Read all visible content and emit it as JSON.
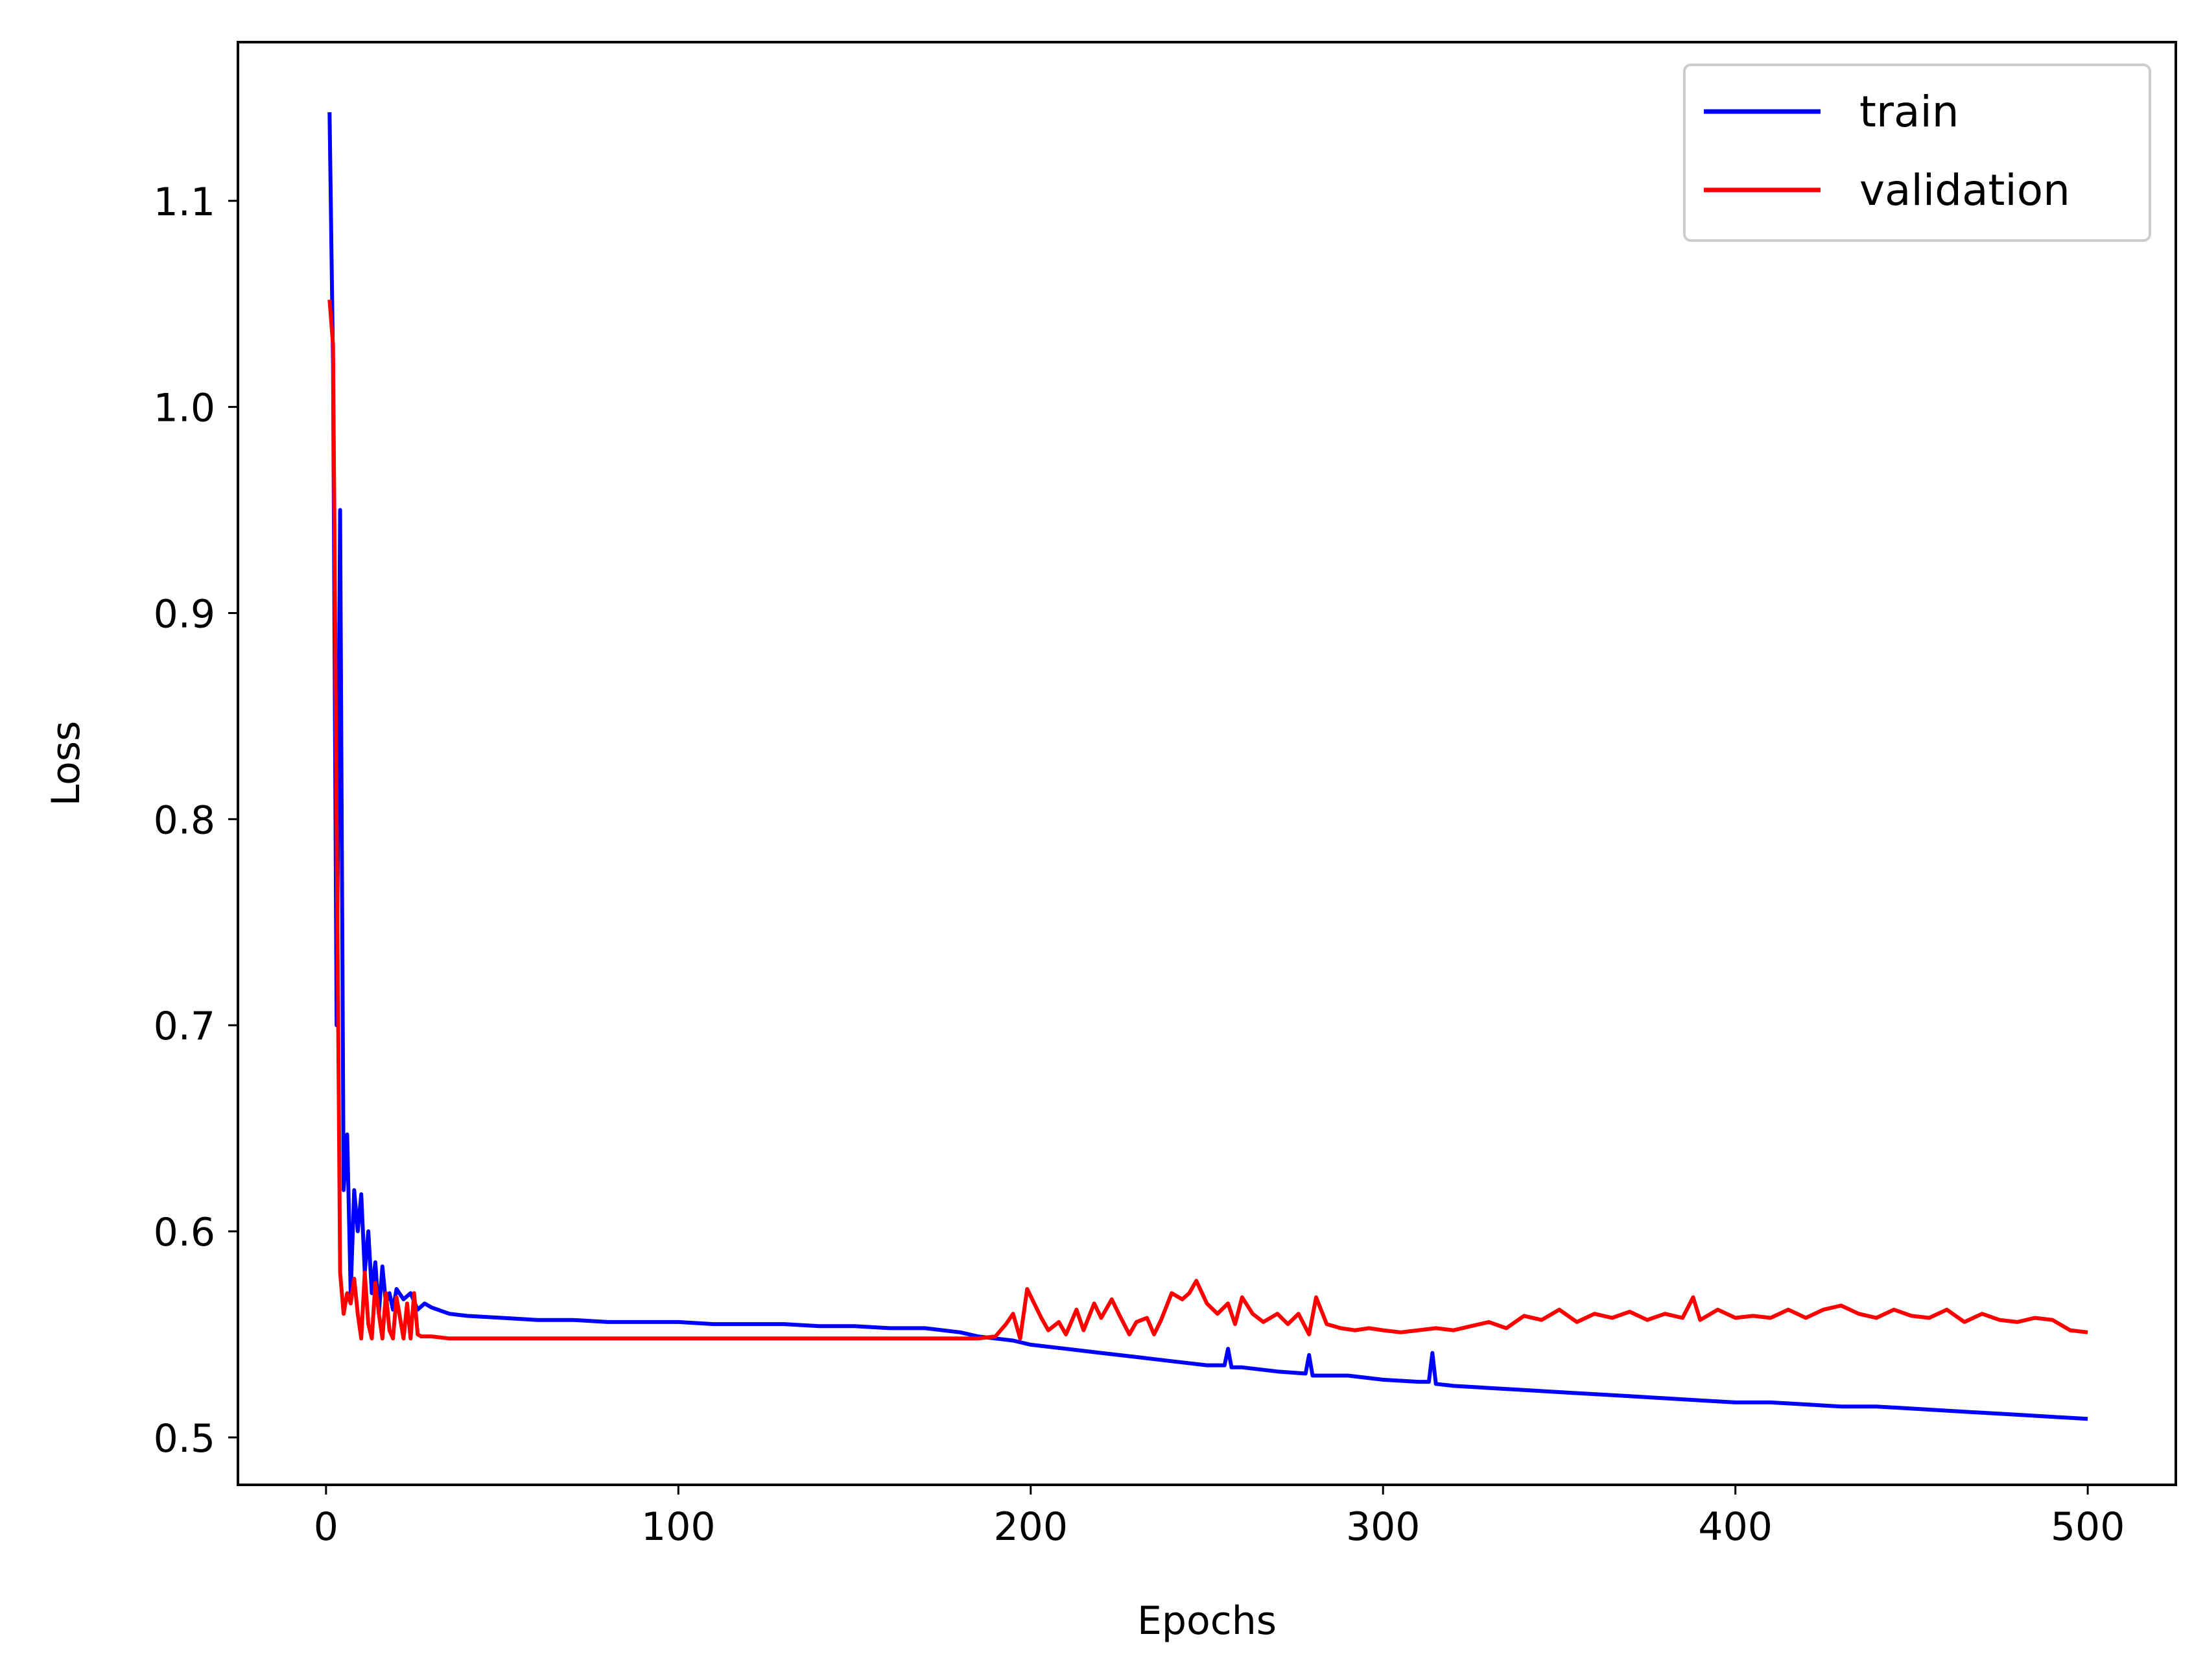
{
  "chart_data": {
    "type": "line",
    "title": "",
    "xlabel": "Epochs",
    "ylabel": "Loss",
    "xlim": [
      -25,
      525
    ],
    "ylim": [
      0.477,
      1.177
    ],
    "xticks": [
      0,
      100,
      200,
      300,
      400,
      500
    ],
    "xtick_labels": [
      "0",
      "100",
      "200",
      "300",
      "400",
      "500"
    ],
    "yticks": [
      0.5,
      0.6,
      0.7,
      0.8,
      0.9,
      1.0,
      1.1
    ],
    "ytick_labels": [
      "0.5",
      "0.6",
      "0.7",
      "0.8",
      "0.9",
      "1.0",
      "1.1"
    ],
    "grid": false,
    "legend_position": "top-right",
    "series": [
      {
        "name": "train",
        "color": "#0000ff",
        "x": [
          1,
          2,
          3,
          4,
          5,
          6,
          7,
          8,
          9,
          10,
          11,
          12,
          13,
          14,
          15,
          16,
          17,
          18,
          19,
          20,
          22,
          24,
          26,
          28,
          30,
          35,
          40,
          50,
          60,
          70,
          80,
          90,
          100,
          110,
          120,
          130,
          140,
          150,
          160,
          170,
          180,
          185,
          190,
          195,
          200,
          210,
          220,
          230,
          240,
          250,
          255,
          256,
          257,
          260,
          270,
          278,
          279,
          280,
          290,
          300,
          310,
          313,
          314,
          315,
          320,
          330,
          340,
          350,
          360,
          370,
          380,
          390,
          400,
          410,
          420,
          430,
          440,
          450,
          460,
          470,
          480,
          490,
          500
        ],
        "y": [
          1.143,
          1.02,
          0.7,
          0.95,
          0.62,
          0.647,
          0.57,
          0.62,
          0.6,
          0.618,
          0.58,
          0.6,
          0.57,
          0.585,
          0.56,
          0.583,
          0.565,
          0.57,
          0.562,
          0.572,
          0.567,
          0.57,
          0.562,
          0.565,
          0.563,
          0.56,
          0.559,
          0.558,
          0.557,
          0.557,
          0.556,
          0.556,
          0.556,
          0.555,
          0.555,
          0.555,
          0.554,
          0.554,
          0.553,
          0.553,
          0.551,
          0.549,
          0.548,
          0.547,
          0.545,
          0.543,
          0.541,
          0.539,
          0.537,
          0.535,
          0.535,
          0.543,
          0.534,
          0.534,
          0.532,
          0.531,
          0.54,
          0.53,
          0.53,
          0.528,
          0.527,
          0.527,
          0.541,
          0.526,
          0.525,
          0.524,
          0.523,
          0.522,
          0.521,
          0.52,
          0.519,
          0.518,
          0.517,
          0.517,
          0.516,
          0.515,
          0.515,
          0.514,
          0.513,
          0.512,
          0.511,
          0.51,
          0.509
        ]
      },
      {
        "name": "validation",
        "color": "#ff0000",
        "x": [
          1,
          2,
          3,
          4,
          5,
          6,
          7,
          8,
          9,
          10,
          11,
          12,
          13,
          14,
          15,
          16,
          17,
          18,
          19,
          20,
          21,
          22,
          23,
          24,
          25,
          26,
          27,
          28,
          30,
          35,
          40,
          50,
          60,
          70,
          80,
          90,
          100,
          110,
          120,
          130,
          140,
          150,
          160,
          170,
          180,
          185,
          190,
          193,
          195,
          197,
          199,
          201,
          203,
          205,
          208,
          210,
          213,
          215,
          218,
          220,
          223,
          225,
          228,
          230,
          233,
          235,
          237,
          240,
          243,
          245,
          247,
          250,
          253,
          256,
          258,
          260,
          263,
          266,
          270,
          273,
          276,
          279,
          281,
          284,
          288,
          292,
          296,
          300,
          305,
          310,
          315,
          320,
          325,
          330,
          335,
          340,
          345,
          350,
          355,
          360,
          365,
          370,
          375,
          380,
          385,
          388,
          390,
          395,
          400,
          405,
          410,
          415,
          420,
          425,
          430,
          435,
          440,
          445,
          450,
          455,
          460,
          465,
          470,
          475,
          480,
          485,
          490,
          495,
          500
        ],
        "y": [
          1.052,
          1.03,
          0.8,
          0.58,
          0.56,
          0.57,
          0.565,
          0.577,
          0.56,
          0.548,
          0.58,
          0.555,
          0.548,
          0.575,
          0.56,
          0.548,
          0.57,
          0.552,
          0.548,
          0.568,
          0.558,
          0.548,
          0.565,
          0.548,
          0.57,
          0.55,
          0.549,
          0.549,
          0.549,
          0.548,
          0.548,
          0.548,
          0.548,
          0.548,
          0.548,
          0.548,
          0.548,
          0.548,
          0.548,
          0.548,
          0.548,
          0.548,
          0.548,
          0.548,
          0.548,
          0.548,
          0.549,
          0.555,
          0.56,
          0.548,
          0.572,
          0.565,
          0.558,
          0.552,
          0.556,
          0.55,
          0.562,
          0.552,
          0.565,
          0.558,
          0.567,
          0.56,
          0.55,
          0.556,
          0.558,
          0.55,
          0.557,
          0.57,
          0.567,
          0.57,
          0.576,
          0.565,
          0.56,
          0.565,
          0.555,
          0.568,
          0.56,
          0.556,
          0.56,
          0.555,
          0.56,
          0.55,
          0.568,
          0.555,
          0.553,
          0.552,
          0.553,
          0.552,
          0.551,
          0.552,
          0.553,
          0.552,
          0.554,
          0.556,
          0.553,
          0.559,
          0.557,
          0.562,
          0.556,
          0.56,
          0.558,
          0.561,
          0.557,
          0.56,
          0.558,
          0.568,
          0.557,
          0.562,
          0.558,
          0.559,
          0.558,
          0.562,
          0.558,
          0.562,
          0.564,
          0.56,
          0.558,
          0.562,
          0.559,
          0.558,
          0.562,
          0.556,
          0.56,
          0.557,
          0.556,
          0.558,
          0.557,
          0.552,
          0.551
        ]
      }
    ]
  }
}
